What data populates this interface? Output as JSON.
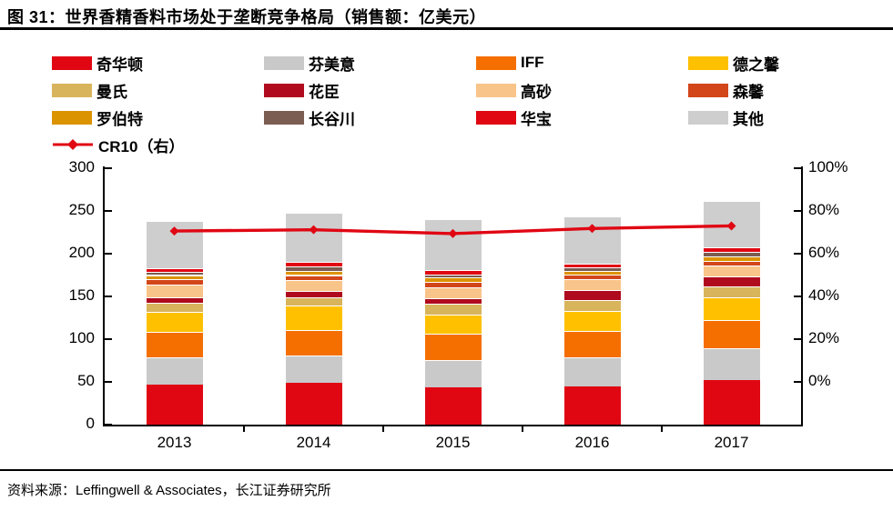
{
  "title": "图 31：世界香精香料市场处于垄断竞争格局（销售额：亿美元）",
  "source": "资料来源：Leffingwell & Associates，长江证券研究所",
  "colors": {
    "accent_red": "#e00713",
    "axis": "#000000"
  },
  "chart_data": {
    "type": "bar",
    "stacked": true,
    "title": "世界香精香料市场处于垄断竞争格局",
    "unit": "亿美元",
    "grid": false,
    "legend_position": "top-left",
    "categories": [
      "2013",
      "2014",
      "2015",
      "2016",
      "2017"
    ],
    "series": [
      {
        "name": "奇华顿",
        "color": "#e00713",
        "values": [
          47,
          49,
          44,
          45,
          52
        ]
      },
      {
        "name": "芬美意",
        "color": "#c9c9c9",
        "values": [
          32,
          32,
          32,
          34,
          37
        ]
      },
      {
        "name": "IFF",
        "color": "#f56f00",
        "values": [
          30,
          30,
          30,
          31,
          33
        ]
      },
      {
        "name": "德之馨",
        "color": "#ffc000",
        "values": [
          23,
          28,
          23,
          23,
          27
        ]
      },
      {
        "name": "曼氏",
        "color": "#d8b45c",
        "values": [
          11,
          10,
          12,
          13,
          13
        ]
      },
      {
        "name": "花臣",
        "color": "#b00a1f",
        "values": [
          6,
          7,
          7,
          11,
          11
        ]
      },
      {
        "name": "高砂",
        "color": "#f9c489",
        "values": [
          15,
          13,
          13,
          13,
          13
        ]
      },
      {
        "name": "森馨",
        "color": "#d2461a",
        "values": [
          6,
          6,
          6,
          6,
          6
        ]
      },
      {
        "name": "罗伯特",
        "color": "#dc9300",
        "values": [
          5,
          5,
          5,
          4,
          5
        ]
      },
      {
        "name": "长谷川",
        "color": "#7b5d52",
        "values": [
          4,
          5,
          4,
          4,
          5
        ]
      },
      {
        "name": "华宝",
        "color": "#e00713",
        "values": [
          4,
          5,
          5,
          4,
          5
        ]
      },
      {
        "name": "其他",
        "color": "#cecece",
        "values": [
          55,
          58,
          59,
          56,
          55
        ]
      }
    ],
    "totals": [
      238,
      248,
      240,
      244,
      262
    ],
    "line_series": {
      "name": "CR10（右）",
      "color": "#e00713",
      "axis": "right",
      "values_percent": [
        75.5,
        76,
        74.5,
        76.5,
        77.5
      ]
    },
    "left_axis": {
      "min": 0,
      "max": 300,
      "tick_step": 50,
      "ticks": [
        "300",
        "250",
        "200",
        "150",
        "100",
        "50",
        "0"
      ]
    },
    "right_axis": {
      "min": 0,
      "max": 100,
      "tick_step": 20,
      "ticks": [
        "100%",
        "80%",
        "60%",
        "40%",
        "20%",
        "0%"
      ]
    }
  }
}
